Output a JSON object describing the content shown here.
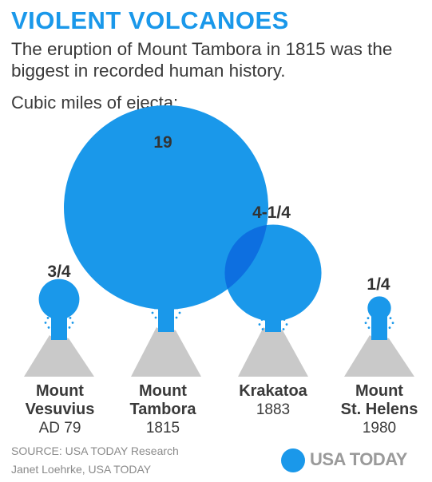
{
  "header": {
    "title": "VIOLENT VOLCANOES",
    "subtitle": "The eruption of Mount Tambora in 1815 was the biggest in recorded human history.",
    "unit_label": "Cubic miles of ejecta:"
  },
  "chart_data": {
    "type": "bubble",
    "title": "VIOLENT VOLCANOES",
    "subtitle": "The eruption of Mount Tambora in 1815 was the biggest in recorded human history.",
    "unit": "Cubic miles of ejecta:",
    "categories": [
      "Mount Vesuvius",
      "Mount Tambora",
      "Krakatoa",
      "Mount St. Helens"
    ],
    "values": [
      0.75,
      19,
      4.25,
      0.25
    ],
    "value_labels": [
      "3/4",
      "19",
      "4-1/4",
      "1/4"
    ],
    "volcanoes": [
      {
        "name_line1": "Mount",
        "name_line2": "Vesuvius",
        "year": "AD 79"
      },
      {
        "name_line1": "Mount",
        "name_line2": "Tambora",
        "year": "1815"
      },
      {
        "name_line1": "Krakatoa",
        "name_line2": "",
        "year": "1883"
      },
      {
        "name_line1": "Mount",
        "name_line2": "St. Helens",
        "year": "1980"
      }
    ]
  },
  "footer": {
    "source": "SOURCE:  USA TODAY Research",
    "credit": "Janet Loehrke, USA TODAY",
    "logo": "USA TODAY"
  },
  "colors": {
    "accent": "#1a98ea",
    "overlap": "#0d6fe0",
    "mountain": "#c9c9c9",
    "text": "#3a3a3a",
    "muted": "#8a8a8a"
  }
}
